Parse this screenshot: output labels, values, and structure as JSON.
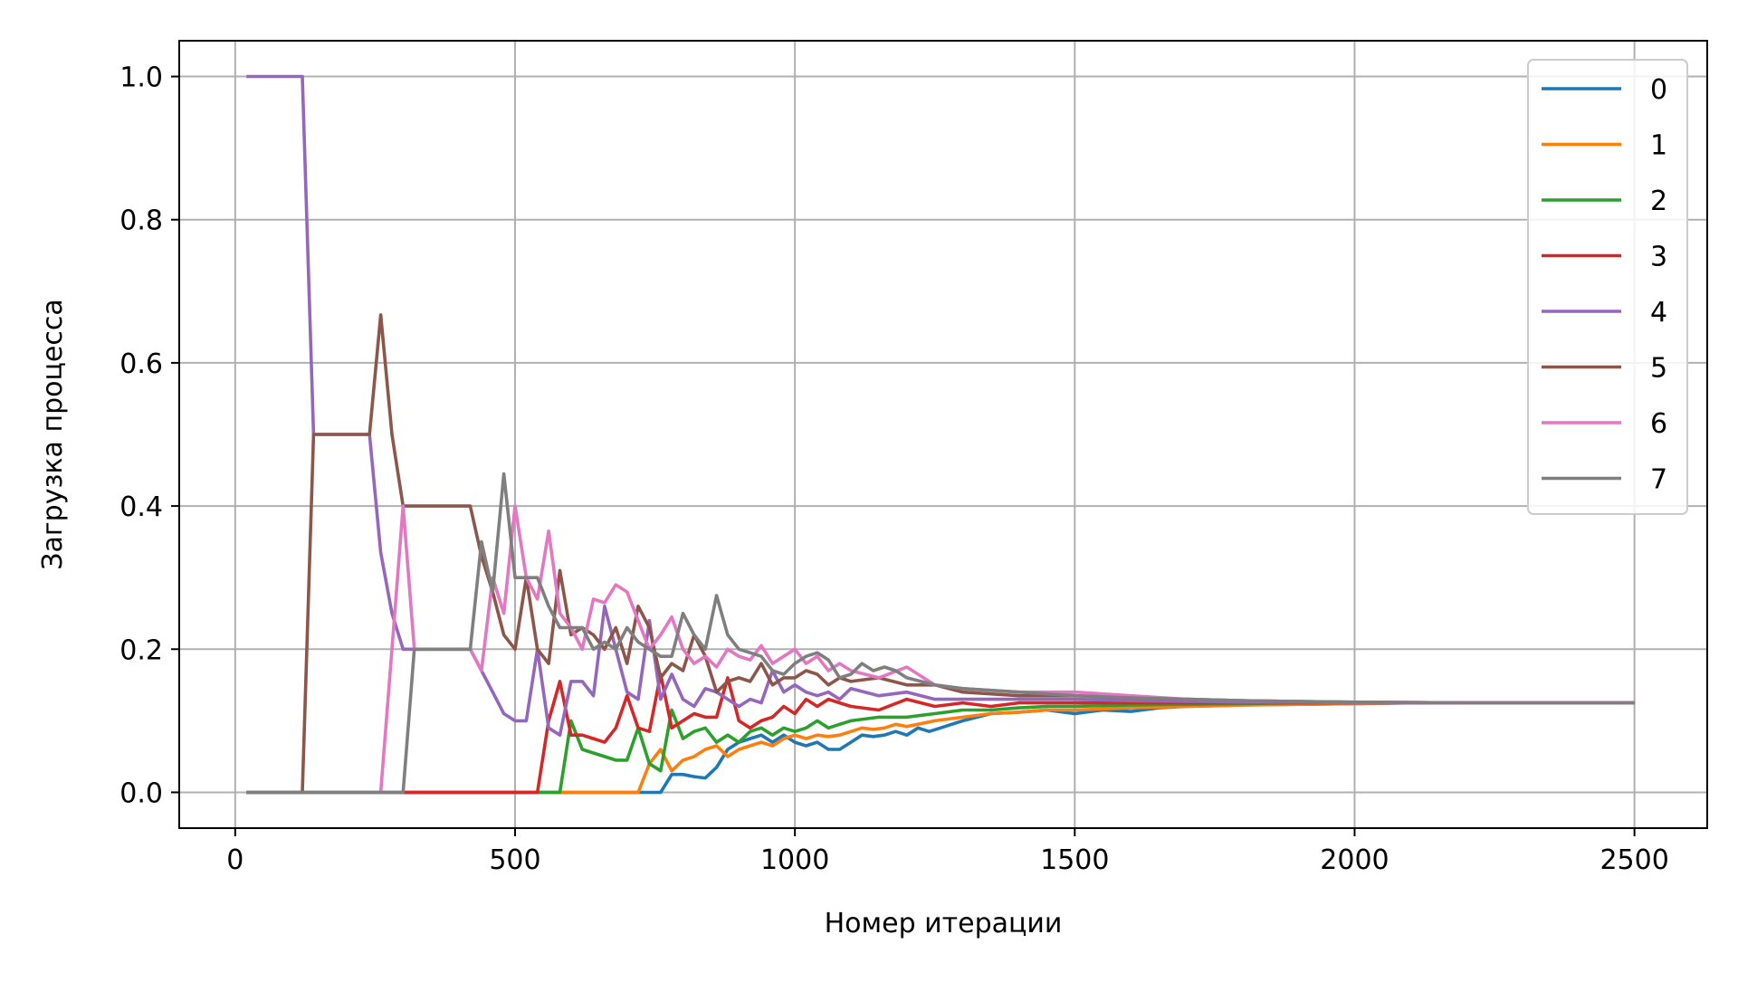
{
  "chart_data": {
    "type": "line",
    "xlabel": "Номер итерации",
    "ylabel": "Загрузка процесса",
    "xlim": [
      -100,
      2630
    ],
    "ylim": [
      -0.05,
      1.05
    ],
    "xticks": [
      0,
      500,
      1000,
      1500,
      2000,
      2500
    ],
    "xtick_labels": [
      "0",
      "500",
      "1000",
      "1500",
      "2000",
      "2500"
    ],
    "yticks": [
      0.0,
      0.2,
      0.4,
      0.6,
      0.8,
      1.0
    ],
    "ytick_labels": [
      "0.0",
      "0.2",
      "0.4",
      "0.6",
      "0.8",
      "1.0"
    ],
    "grid": true,
    "legend_position": "top-right",
    "series": [
      {
        "name": "0",
        "color": "#1f77b4",
        "x": [
          20,
          760,
          780,
          800,
          820,
          840,
          860,
          880,
          900,
          920,
          940,
          960,
          980,
          1000,
          1020,
          1040,
          1060,
          1080,
          1100,
          1120,
          1140,
          1160,
          1180,
          1200,
          1220,
          1240,
          1260,
          1280,
          1300,
          1350,
          1400,
          1450,
          1500,
          1550,
          1600,
          1650,
          1700,
          1750,
          1800,
          1900,
          2000,
          2100,
          2200,
          2300,
          2400,
          2500
        ],
        "y": [
          0,
          0,
          0.025,
          0.025,
          0.022,
          0.02,
          0.035,
          0.06,
          0.07,
          0.075,
          0.08,
          0.07,
          0.08,
          0.07,
          0.065,
          0.07,
          0.06,
          0.06,
          0.07,
          0.08,
          0.078,
          0.08,
          0.085,
          0.08,
          0.09,
          0.085,
          0.09,
          0.095,
          0.1,
          0.11,
          0.112,
          0.115,
          0.11,
          0.115,
          0.113,
          0.118,
          0.12,
          0.121,
          0.122,
          0.123,
          0.124,
          0.125,
          0.125,
          0.125,
          0.125,
          0.125
        ]
      },
      {
        "name": "1",
        "color": "#ff7f0e",
        "x": [
          20,
          720,
          740,
          760,
          780,
          800,
          820,
          840,
          860,
          880,
          900,
          920,
          940,
          960,
          980,
          1000,
          1020,
          1040,
          1060,
          1080,
          1100,
          1120,
          1140,
          1160,
          1180,
          1200,
          1250,
          1300,
          1350,
          1400,
          1450,
          1500,
          1600,
          1700,
          1800,
          1900,
          2000,
          2100,
          2200,
          2300,
          2400,
          2500
        ],
        "y": [
          0,
          0,
          0.04,
          0.06,
          0.03,
          0.045,
          0.05,
          0.06,
          0.065,
          0.05,
          0.06,
          0.065,
          0.07,
          0.065,
          0.075,
          0.08,
          0.075,
          0.08,
          0.078,
          0.08,
          0.085,
          0.09,
          0.088,
          0.09,
          0.095,
          0.092,
          0.1,
          0.105,
          0.11,
          0.112,
          0.115,
          0.115,
          0.118,
          0.12,
          0.122,
          0.123,
          0.124,
          0.125,
          0.125,
          0.125,
          0.125,
          0.125
        ]
      },
      {
        "name": "2",
        "color": "#2ca02c",
        "x": [
          20,
          580,
          600,
          620,
          640,
          660,
          680,
          700,
          720,
          740,
          760,
          780,
          800,
          820,
          840,
          860,
          880,
          900,
          920,
          940,
          960,
          980,
          1000,
          1020,
          1040,
          1060,
          1080,
          1100,
          1150,
          1200,
          1250,
          1300,
          1350,
          1400,
          1450,
          1500,
          1600,
          1700,
          1800,
          1900,
          2000,
          2100,
          2200,
          2300,
          2400,
          2500
        ],
        "y": [
          0,
          0,
          0.1,
          0.06,
          0.055,
          0.05,
          0.045,
          0.045,
          0.09,
          0.04,
          0.03,
          0.115,
          0.075,
          0.085,
          0.09,
          0.07,
          0.08,
          0.07,
          0.085,
          0.09,
          0.08,
          0.09,
          0.085,
          0.09,
          0.1,
          0.09,
          0.095,
          0.1,
          0.105,
          0.105,
          0.11,
          0.115,
          0.115,
          0.118,
          0.12,
          0.12,
          0.122,
          0.123,
          0.124,
          0.125,
          0.125,
          0.125,
          0.125,
          0.125,
          0.125,
          0.125
        ]
      },
      {
        "name": "3",
        "color": "#d62728",
        "x": [
          300,
          540,
          560,
          580,
          600,
          620,
          640,
          660,
          680,
          700,
          720,
          740,
          760,
          780,
          800,
          820,
          840,
          860,
          880,
          900,
          920,
          940,
          960,
          980,
          1000,
          1020,
          1040,
          1060,
          1080,
          1100,
          1150,
          1200,
          1250,
          1300,
          1350,
          1400,
          1500,
          1600,
          1700,
          1800,
          1900,
          2000,
          2100,
          2200,
          2300,
          2400,
          2500
        ],
        "y": [
          0,
          0,
          0.1,
          0.155,
          0.08,
          0.08,
          0.075,
          0.07,
          0.09,
          0.135,
          0.09,
          0.085,
          0.165,
          0.09,
          0.1,
          0.11,
          0.105,
          0.105,
          0.16,
          0.1,
          0.09,
          0.1,
          0.105,
          0.12,
          0.11,
          0.13,
          0.12,
          0.13,
          0.125,
          0.12,
          0.115,
          0.13,
          0.12,
          0.125,
          0.12,
          0.125,
          0.125,
          0.125,
          0.125,
          0.125,
          0.125,
          0.125,
          0.125,
          0.125,
          0.125,
          0.125,
          0.125
        ]
      },
      {
        "name": "4",
        "color": "#9467bd",
        "x": [
          20,
          120,
          140,
          240,
          260,
          280,
          300,
          420,
          440,
          460,
          480,
          500,
          520,
          540,
          560,
          580,
          600,
          620,
          640,
          660,
          680,
          700,
          720,
          740,
          760,
          780,
          800,
          820,
          840,
          860,
          880,
          900,
          920,
          940,
          960,
          980,
          1000,
          1020,
          1040,
          1060,
          1080,
          1100,
          1150,
          1200,
          1250,
          1300,
          1400,
          1500,
          1600,
          1700,
          1800,
          1900,
          2000,
          2200,
          2500
        ],
        "y": [
          1.0,
          1.0,
          0.5,
          0.5,
          0.335,
          0.25,
          0.2,
          0.2,
          0.17,
          0.14,
          0.11,
          0.1,
          0.1,
          0.2,
          0.09,
          0.08,
          0.155,
          0.155,
          0.135,
          0.26,
          0.2,
          0.14,
          0.13,
          0.24,
          0.13,
          0.165,
          0.13,
          0.12,
          0.145,
          0.14,
          0.13,
          0.12,
          0.13,
          0.125,
          0.17,
          0.14,
          0.15,
          0.14,
          0.135,
          0.14,
          0.13,
          0.145,
          0.135,
          0.14,
          0.13,
          0.13,
          0.13,
          0.13,
          0.128,
          0.127,
          0.126,
          0.126,
          0.125,
          0.125,
          0.125
        ]
      },
      {
        "name": "5",
        "color": "#8c564b",
        "x": [
          20,
          120,
          140,
          240,
          260,
          280,
          300,
          420,
          440,
          460,
          480,
          500,
          520,
          540,
          560,
          580,
          600,
          620,
          640,
          660,
          680,
          700,
          720,
          740,
          760,
          780,
          800,
          820,
          840,
          860,
          880,
          900,
          920,
          940,
          960,
          980,
          1000,
          1020,
          1040,
          1060,
          1080,
          1100,
          1150,
          1200,
          1250,
          1300,
          1400,
          1500,
          1600,
          1700,
          1800,
          1900,
          2000,
          2200,
          2500
        ],
        "y": [
          0,
          0,
          0.5,
          0.5,
          0.667,
          0.5,
          0.4,
          0.4,
          0.33,
          0.28,
          0.22,
          0.2,
          0.3,
          0.2,
          0.18,
          0.31,
          0.22,
          0.23,
          0.22,
          0.2,
          0.23,
          0.18,
          0.26,
          0.23,
          0.16,
          0.18,
          0.17,
          0.22,
          0.19,
          0.14,
          0.155,
          0.16,
          0.155,
          0.18,
          0.15,
          0.16,
          0.16,
          0.17,
          0.165,
          0.15,
          0.16,
          0.155,
          0.16,
          0.15,
          0.15,
          0.14,
          0.135,
          0.135,
          0.132,
          0.13,
          0.128,
          0.127,
          0.126,
          0.125,
          0.125
        ]
      },
      {
        "name": "6",
        "color": "#e377c2",
        "x": [
          20,
          260,
          280,
          300,
          320,
          420,
          440,
          460,
          480,
          500,
          520,
          540,
          560,
          580,
          600,
          620,
          640,
          660,
          680,
          700,
          720,
          740,
          760,
          780,
          800,
          820,
          840,
          860,
          880,
          900,
          920,
          940,
          960,
          980,
          1000,
          1020,
          1040,
          1060,
          1080,
          1100,
          1150,
          1200,
          1250,
          1300,
          1400,
          1500,
          1600,
          1700,
          1800,
          1900,
          2000,
          2200,
          2500
        ],
        "y": [
          0,
          0,
          0.2,
          0.4,
          0.2,
          0.2,
          0.17,
          0.3,
          0.25,
          0.4,
          0.3,
          0.27,
          0.365,
          0.25,
          0.23,
          0.2,
          0.27,
          0.265,
          0.29,
          0.28,
          0.24,
          0.2,
          0.22,
          0.245,
          0.2,
          0.18,
          0.19,
          0.175,
          0.2,
          0.19,
          0.185,
          0.205,
          0.18,
          0.19,
          0.2,
          0.18,
          0.19,
          0.17,
          0.18,
          0.17,
          0.16,
          0.175,
          0.15,
          0.145,
          0.14,
          0.14,
          0.135,
          0.13,
          0.128,
          0.127,
          0.126,
          0.125,
          0.125
        ]
      },
      {
        "name": "7",
        "color": "#7f7f7f",
        "x": [
          20,
          300,
          320,
          420,
          440,
          460,
          480,
          500,
          520,
          540,
          560,
          580,
          600,
          620,
          640,
          660,
          680,
          700,
          720,
          740,
          760,
          780,
          800,
          820,
          840,
          860,
          880,
          900,
          920,
          940,
          960,
          980,
          1000,
          1020,
          1040,
          1060,
          1080,
          1100,
          1120,
          1140,
          1160,
          1180,
          1200,
          1250,
          1300,
          1400,
          1500,
          1600,
          1700,
          1800,
          1900,
          2000,
          2200,
          2500
        ],
        "y": [
          0,
          0,
          0.2,
          0.2,
          0.35,
          0.28,
          0.445,
          0.3,
          0.3,
          0.3,
          0.26,
          0.23,
          0.23,
          0.23,
          0.2,
          0.21,
          0.2,
          0.23,
          0.21,
          0.2,
          0.19,
          0.19,
          0.25,
          0.22,
          0.2,
          0.275,
          0.22,
          0.2,
          0.195,
          0.19,
          0.17,
          0.165,
          0.18,
          0.19,
          0.195,
          0.185,
          0.16,
          0.165,
          0.18,
          0.17,
          0.175,
          0.17,
          0.16,
          0.15,
          0.145,
          0.14,
          0.135,
          0.132,
          0.13,
          0.128,
          0.127,
          0.126,
          0.125,
          0.125
        ]
      }
    ]
  }
}
